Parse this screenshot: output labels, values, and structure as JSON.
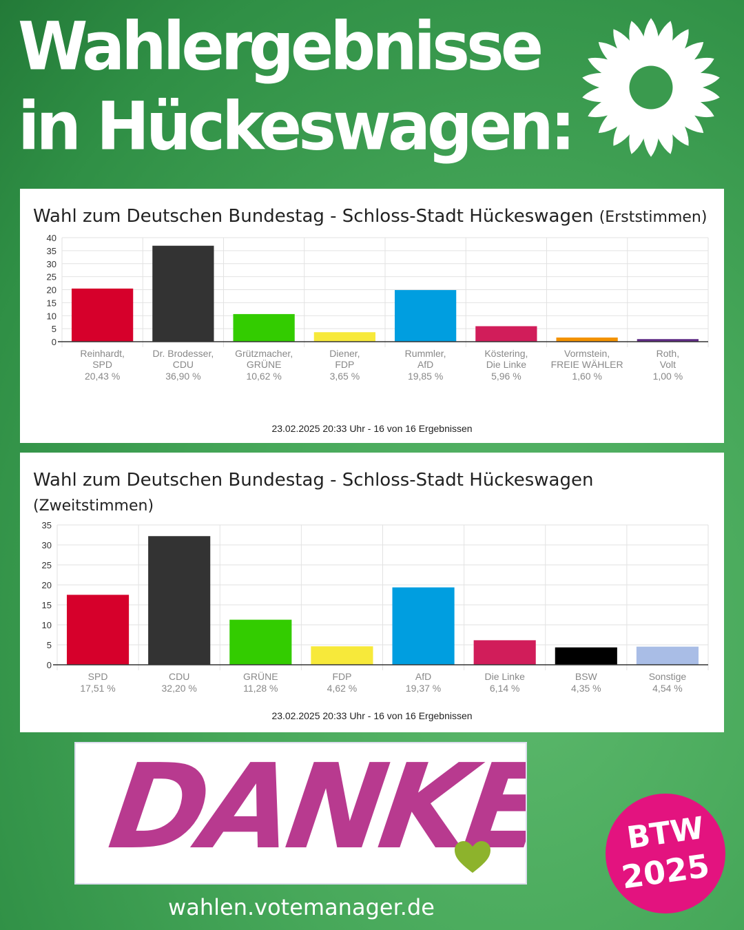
{
  "header": {
    "line1": "Wahlergebnisse",
    "line2": "in Hückeswagen:"
  },
  "chart_data": [
    {
      "type": "bar",
      "title": "Wahl zum Deutschen Bundestag - Schloss-Stadt Hückeswagen",
      "subtitle": "(Erststimmen)",
      "categories": [
        "Reinhardt, SPD",
        "Dr. Brodesser, CDU",
        "Grützmacher, GRÜNE",
        "Diener, FDP",
        "Rummler, AfD",
        "Köstering, Die Linke",
        "Vormstein, FREIE WÄHLER",
        "Roth, Volt"
      ],
      "values": [
        20.43,
        36.9,
        10.62,
        3.65,
        19.85,
        5.96,
        1.6,
        1.0
      ],
      "value_labels": [
        "20,43 %",
        "36,90 %",
        "10,62 %",
        "3,65 %",
        "19,85 %",
        "5,96 %",
        "1,60 %",
        "1,00 %"
      ],
      "colors": [
        "#d6002b",
        "#333333",
        "#33cc00",
        "#f7e93a",
        "#009ee0",
        "#d11d5a",
        "#f39200",
        "#5f2b84"
      ],
      "yticks": [
        0,
        5,
        10,
        15,
        20,
        25,
        30,
        35,
        40
      ],
      "ylim": [
        0,
        40
      ],
      "grid": true,
      "footer": "23.02.2025 20:33 Uhr - 16 von 16 Ergebnissen"
    },
    {
      "type": "bar",
      "title": "Wahl zum Deutschen Bundestag - Schloss-Stadt Hückeswagen",
      "subtitle": "(Zweitstimmen)",
      "categories": [
        "SPD",
        "CDU",
        "GRÜNE",
        "FDP",
        "AfD",
        "Die Linke",
        "BSW",
        "Sonstige"
      ],
      "values": [
        17.51,
        32.2,
        11.28,
        4.62,
        19.37,
        6.14,
        4.35,
        4.54
      ],
      "value_labels": [
        "17,51 %",
        "32,20 %",
        "11,28 %",
        "4,62 %",
        "19,37 %",
        "6,14 %",
        "4,35 %",
        "4,54 %"
      ],
      "colors": [
        "#d6002b",
        "#333333",
        "#33cc00",
        "#f7e93a",
        "#009ee0",
        "#d11d5a",
        "#000000",
        "#a9bde6"
      ],
      "yticks": [
        0,
        5,
        10,
        15,
        20,
        25,
        30,
        35
      ],
      "ylim": [
        0,
        35
      ],
      "grid": true,
      "footer": "23.02.2025 20:33 Uhr - 16 von 16 Ergebnissen"
    }
  ],
  "banner": {
    "text": "DANKE"
  },
  "source": "wahlen.votemanager.de",
  "badge": {
    "line1": "BTW",
    "line2": "2025"
  }
}
